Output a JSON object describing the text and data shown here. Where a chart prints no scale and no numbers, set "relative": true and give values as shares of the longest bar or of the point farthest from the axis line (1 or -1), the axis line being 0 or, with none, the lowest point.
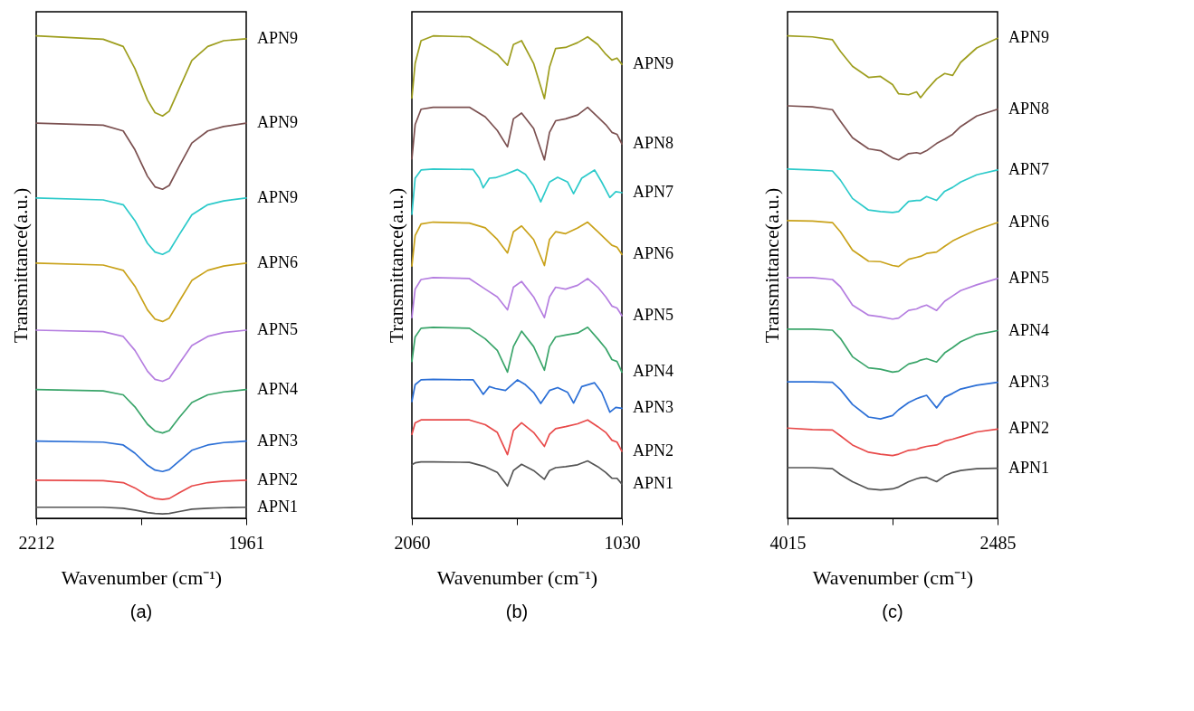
{
  "chart_data": [
    {
      "type": "line",
      "title": "(a)",
      "xlabel": "Wavenumber (cm⁻¹)",
      "ylabel": "Transmittance(a.u.)",
      "relative": true,
      "tick_labels": "x",
      "grid": false,
      "xlim": [
        2212,
        1961
      ],
      "xticks": [
        2212,
        {
          "value": 2086.5,
          "label": null
        },
        1961
      ],
      "x": [
        2212,
        2132,
        2108,
        2094,
        2079,
        2070,
        2061,
        2053,
        2041,
        2026,
        2007,
        1988,
        1961
      ],
      "series": [
        {
          "name": "APN9",
          "color": "#9e9e1e",
          "values": [
            1.0,
            0.993,
            0.978,
            0.932,
            0.867,
            0.841,
            0.834,
            0.844,
            0.891,
            0.949,
            0.978,
            0.99,
            0.994
          ]
        },
        {
          "name": "APN9",
          "color": "#7b5050",
          "values": [
            0.819,
            0.815,
            0.803,
            0.764,
            0.709,
            0.687,
            0.682,
            0.69,
            0.73,
            0.778,
            0.803,
            0.812,
            0.819
          ]
        },
        {
          "name": "APN9",
          "color": "#2ccaca",
          "values": [
            0.664,
            0.66,
            0.65,
            0.617,
            0.57,
            0.552,
            0.547,
            0.554,
            0.588,
            0.629,
            0.65,
            0.658,
            0.664
          ]
        },
        {
          "name": "APN6",
          "color": "#c9a21a",
          "values": [
            0.529,
            0.525,
            0.514,
            0.481,
            0.432,
            0.413,
            0.408,
            0.415,
            0.45,
            0.493,
            0.514,
            0.523,
            0.529
          ]
        },
        {
          "name": "APN5",
          "color": "#b57ee0",
          "values": [
            0.39,
            0.387,
            0.377,
            0.348,
            0.305,
            0.288,
            0.284,
            0.29,
            0.321,
            0.358,
            0.377,
            0.385,
            0.39
          ]
        },
        {
          "name": "APN4",
          "color": "#3aa56a",
          "values": [
            0.267,
            0.264,
            0.256,
            0.231,
            0.195,
            0.181,
            0.177,
            0.182,
            0.209,
            0.24,
            0.256,
            0.262,
            0.267
          ]
        },
        {
          "name": "APN3",
          "color": "#2b6fd6",
          "values": [
            0.16,
            0.158,
            0.152,
            0.135,
            0.11,
            0.1,
            0.097,
            0.101,
            0.119,
            0.141,
            0.152,
            0.157,
            0.16
          ]
        },
        {
          "name": "APN2",
          "color": "#e84a4a",
          "values": [
            0.079,
            0.078,
            0.074,
            0.063,
            0.047,
            0.041,
            0.039,
            0.041,
            0.053,
            0.067,
            0.074,
            0.077,
            0.079
          ]
        },
        {
          "name": "APN1",
          "color": "#555555",
          "values": [
            0.023,
            0.023,
            0.021,
            0.017,
            0.012,
            0.01,
            0.009,
            0.01,
            0.014,
            0.019,
            0.021,
            0.022,
            0.023
          ]
        }
      ]
    },
    {
      "type": "line",
      "title": "(b)",
      "xlabel": "Wavenumber (cm⁻¹)",
      "ylabel": "Transmittance(a.u.)",
      "relative": true,
      "tick_labels": "x",
      "grid": false,
      "xlim": [
        2060,
        1030
      ],
      "xticks": [
        2060,
        {
          "value": 1545,
          "label": null
        },
        1030
      ],
      "x": [
        2060,
        2044,
        2015,
        1956,
        1778,
        1700,
        1641,
        1591,
        1562,
        1522,
        1463,
        1410,
        1385,
        1355,
        1306,
        1247,
        1198,
        1148,
        1109,
        1079,
        1054,
        1030
      ],
      "series": [
        {
          "name": "APN9",
          "color": "#9e9e1e",
          "values": [
            0.871,
            0.943,
            0.99,
            1.0,
            0.998,
            0.978,
            0.962,
            0.939,
            0.982,
            0.99,
            0.943,
            0.87,
            0.935,
            0.974,
            0.976,
            0.986,
            0.998,
            0.982,
            0.962,
            0.95,
            0.954,
            0.941
          ]
        },
        {
          "name": "APN8",
          "color": "#7b5050",
          "values": [
            0.745,
            0.816,
            0.848,
            0.852,
            0.852,
            0.832,
            0.804,
            0.77,
            0.828,
            0.84,
            0.808,
            0.743,
            0.8,
            0.824,
            0.828,
            0.836,
            0.852,
            0.832,
            0.816,
            0.8,
            0.796,
            0.776
          ]
        },
        {
          "name": "APN7",
          "color": "#2ccaca",
          "x": [
            2060,
            2044,
            2015,
            1956,
            1759,
            1729,
            1710,
            1680,
            1650,
            1601,
            1542,
            1503,
            1463,
            1428,
            1385,
            1345,
            1296,
            1267,
            1227,
            1164,
            1129,
            1089,
            1060,
            1030
          ],
          "values": [
            0.63,
            0.705,
            0.722,
            0.724,
            0.723,
            0.705,
            0.685,
            0.705,
            0.706,
            0.713,
            0.723,
            0.713,
            0.689,
            0.656,
            0.697,
            0.707,
            0.697,
            0.673,
            0.705,
            0.722,
            0.697,
            0.665,
            0.677,
            0.675
          ]
        },
        {
          "name": "APN6",
          "color": "#c9a21a",
          "values": [
            0.523,
            0.586,
            0.61,
            0.614,
            0.612,
            0.602,
            0.578,
            0.55,
            0.594,
            0.606,
            0.578,
            0.524,
            0.578,
            0.594,
            0.59,
            0.602,
            0.614,
            0.594,
            0.578,
            0.566,
            0.562,
            0.547
          ]
        },
        {
          "name": "APN5",
          "color": "#b57ee0",
          "values": [
            0.416,
            0.475,
            0.495,
            0.499,
            0.497,
            0.475,
            0.459,
            0.432,
            0.479,
            0.491,
            0.459,
            0.416,
            0.459,
            0.479,
            0.475,
            0.483,
            0.497,
            0.479,
            0.459,
            0.44,
            0.436,
            0.42
          ]
        },
        {
          "name": "APN4",
          "color": "#3aa56a",
          "values": [
            0.325,
            0.376,
            0.394,
            0.396,
            0.394,
            0.372,
            0.348,
            0.303,
            0.356,
            0.388,
            0.356,
            0.307,
            0.356,
            0.376,
            0.38,
            0.384,
            0.396,
            0.372,
            0.352,
            0.329,
            0.325,
            0.303
          ]
        },
        {
          "name": "APN3",
          "color": "#2b6fd6",
          "x": [
            2060,
            2044,
            2015,
            1956,
            1759,
            1729,
            1710,
            1680,
            1650,
            1601,
            1542,
            1503,
            1463,
            1428,
            1385,
            1345,
            1296,
            1267,
            1227,
            1164,
            1129,
            1089,
            1060,
            1030
          ],
          "values": [
            0.242,
            0.277,
            0.287,
            0.288,
            0.287,
            0.269,
            0.257,
            0.273,
            0.269,
            0.265,
            0.287,
            0.277,
            0.261,
            0.238,
            0.265,
            0.271,
            0.261,
            0.239,
            0.273,
            0.281,
            0.261,
            0.22,
            0.23,
            0.228
          ]
        },
        {
          "name": "APN2",
          "color": "#e84a4a",
          "values": [
            0.174,
            0.198,
            0.204,
            0.204,
            0.204,
            0.194,
            0.178,
            0.132,
            0.182,
            0.198,
            0.178,
            0.149,
            0.174,
            0.186,
            0.19,
            0.196,
            0.204,
            0.19,
            0.178,
            0.162,
            0.158,
            0.139
          ]
        },
        {
          "name": "APN1",
          "color": "#555555",
          "values": [
            0.111,
            0.115,
            0.117,
            0.117,
            0.116,
            0.107,
            0.095,
            0.067,
            0.099,
            0.112,
            0.099,
            0.081,
            0.099,
            0.105,
            0.107,
            0.111,
            0.119,
            0.107,
            0.095,
            0.083,
            0.083,
            0.071
          ]
        }
      ]
    },
    {
      "type": "line",
      "title": "(c)",
      "xlabel": "Wavenumber (cm⁻¹)",
      "ylabel": "Transmittance(a.u.)",
      "relative": true,
      "tick_labels": "x",
      "grid": false,
      "xlim": [
        4015,
        2485
      ],
      "xticks": [
        4015,
        {
          "value": 3250,
          "label": null
        },
        2485
      ],
      "x": [
        4015,
        3834,
        3688,
        3630,
        3542,
        3425,
        3338,
        3250,
        3206,
        3133,
        3075,
        3046,
        3002,
        2929,
        2870,
        2812,
        2754,
        2637,
        2485
      ],
      "series": [
        {
          "name": "APN9",
          "color": "#9e9e1e",
          "values": [
            1.0,
            0.998,
            0.992,
            0.968,
            0.937,
            0.914,
            0.916,
            0.899,
            0.88,
            0.878,
            0.884,
            0.872,
            0.888,
            0.911,
            0.922,
            0.918,
            0.945,
            0.975,
            0.995
          ]
        },
        {
          "name": "APN8",
          "color": "#7b5050",
          "values": [
            0.855,
            0.853,
            0.847,
            0.823,
            0.789,
            0.766,
            0.762,
            0.747,
            0.743,
            0.756,
            0.758,
            0.756,
            0.762,
            0.777,
            0.786,
            0.796,
            0.812,
            0.834,
            0.848
          ]
        },
        {
          "name": "APN7",
          "color": "#2ccaca",
          "values": [
            0.724,
            0.722,
            0.72,
            0.701,
            0.663,
            0.639,
            0.636,
            0.634,
            0.636,
            0.657,
            0.659,
            0.659,
            0.667,
            0.659,
            0.678,
            0.686,
            0.697,
            0.712,
            0.722
          ]
        },
        {
          "name": "APN6",
          "color": "#c9a21a",
          "values": [
            0.617,
            0.616,
            0.613,
            0.594,
            0.556,
            0.533,
            0.532,
            0.524,
            0.522,
            0.537,
            0.541,
            0.543,
            0.549,
            0.552,
            0.564,
            0.575,
            0.583,
            0.598,
            0.613
          ]
        },
        {
          "name": "APN5",
          "color": "#b57ee0",
          "values": [
            0.499,
            0.499,
            0.495,
            0.48,
            0.442,
            0.421,
            0.418,
            0.413,
            0.415,
            0.431,
            0.434,
            0.438,
            0.442,
            0.431,
            0.45,
            0.461,
            0.472,
            0.484,
            0.497
          ]
        },
        {
          "name": "APN4",
          "color": "#3aa56a",
          "values": [
            0.392,
            0.392,
            0.39,
            0.373,
            0.335,
            0.312,
            0.309,
            0.303,
            0.305,
            0.32,
            0.324,
            0.328,
            0.331,
            0.324,
            0.343,
            0.354,
            0.366,
            0.381,
            0.389
          ]
        },
        {
          "name": "APN3",
          "color": "#2b6fd6",
          "values": [
            0.283,
            0.283,
            0.282,
            0.267,
            0.236,
            0.21,
            0.206,
            0.213,
            0.225,
            0.24,
            0.248,
            0.251,
            0.255,
            0.229,
            0.251,
            0.259,
            0.268,
            0.276,
            0.282
          ]
        },
        {
          "name": "APN2",
          "color": "#e84a4a",
          "values": [
            0.187,
            0.184,
            0.183,
            0.171,
            0.152,
            0.137,
            0.133,
            0.13,
            0.133,
            0.141,
            0.143,
            0.146,
            0.149,
            0.152,
            0.16,
            0.164,
            0.169,
            0.179,
            0.185
          ]
        },
        {
          "name": "APN1",
          "color": "#555555",
          "values": [
            0.105,
            0.105,
            0.103,
            0.091,
            0.076,
            0.061,
            0.059,
            0.061,
            0.065,
            0.076,
            0.082,
            0.084,
            0.085,
            0.076,
            0.088,
            0.095,
            0.099,
            0.103,
            0.104
          ]
        }
      ]
    }
  ]
}
